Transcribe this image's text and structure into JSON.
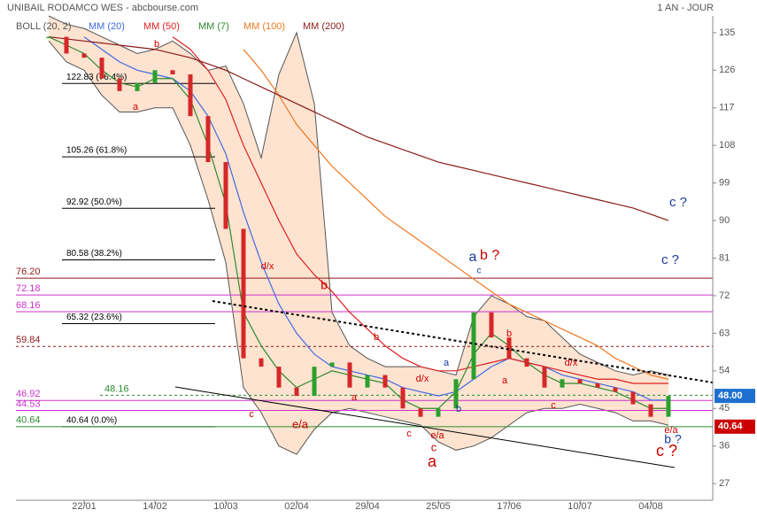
{
  "header": {
    "title": "UNIBAIL RODAMCO WES - abcbourse.com",
    "period": "1 AN - JOUR"
  },
  "chart_data": {
    "type": "line",
    "categories": [
      null,
      null,
      "22/01",
      null,
      null,
      null,
      "14/02",
      null,
      null,
      null,
      "10/03",
      null,
      null,
      null,
      "02/04",
      null,
      null,
      null,
      "29/04",
      null,
      null,
      null,
      "25/05",
      null,
      null,
      null,
      "17/06",
      null,
      null,
      null,
      "10/07",
      null,
      null,
      null,
      "04/08",
      null
    ],
    "ylim": [
      23,
      139
    ],
    "yticks": [
      135,
      126,
      117,
      108,
      99,
      90,
      81,
      72,
      63,
      54,
      45,
      36,
      27
    ],
    "price": {
      "up_color": "#2ca02c",
      "down_color": "#d62728",
      "values": [
        134,
        130,
        129,
        124,
        121,
        123,
        126,
        125,
        115,
        104,
        88,
        57,
        55,
        50,
        48,
        55,
        56,
        50,
        53,
        50,
        45,
        43,
        45,
        52,
        68,
        62,
        57,
        55,
        50,
        52,
        51,
        50,
        49,
        46,
        43,
        48
      ]
    },
    "band": {
      "name": "BOLL (20, 2)",
      "color": "#555555",
      "fill": "#fde3d0",
      "upper": [
        139,
        137,
        136,
        134,
        132,
        130,
        131,
        133,
        130,
        126,
        127,
        118,
        105,
        125,
        135,
        118,
        68,
        60,
        57,
        55,
        55,
        55,
        54,
        53,
        67,
        72,
        70,
        67,
        66,
        62,
        58,
        56,
        54,
        53,
        54,
        53
      ],
      "lower": [
        133,
        128,
        126,
        120,
        116,
        116,
        117,
        117,
        108,
        95,
        80,
        50,
        44,
        36,
        34,
        40,
        44,
        45,
        44,
        43,
        42,
        41,
        37,
        35,
        36,
        38,
        41,
        44,
        45,
        45,
        46,
        45,
        44,
        42,
        42,
        41
      ]
    },
    "series": [
      {
        "name": "MM (20)",
        "color": "#4169e1",
        "values": [
          null,
          null,
          134,
          131,
          128,
          126,
          125,
          124,
          121,
          115,
          106,
          92,
          80,
          70,
          63,
          58,
          55,
          54,
          53,
          52,
          50,
          49,
          48,
          49,
          52,
          55,
          57,
          56,
          55,
          53,
          52,
          51,
          50,
          49,
          47,
          47
        ]
      },
      {
        "name": "MM (50)",
        "color": "#e02020",
        "values": [
          null,
          null,
          null,
          null,
          null,
          null,
          null,
          134,
          131,
          126,
          119,
          108,
          99,
          90,
          82,
          77,
          73,
          68,
          64,
          60,
          57,
          55,
          54,
          54,
          55,
          56,
          57,
          56,
          55,
          54,
          53,
          52,
          52,
          51,
          51,
          51
        ]
      },
      {
        "name": "MM (7)",
        "color": "#2e8b2e",
        "values": [
          134,
          132,
          130,
          126,
          123,
          122,
          124,
          124,
          119,
          108,
          94,
          68,
          60,
          54,
          50,
          52,
          54,
          53,
          52,
          51,
          47,
          45,
          45,
          49,
          58,
          63,
          60,
          56,
          53,
          51,
          51,
          50,
          49,
          47,
          45,
          45
        ]
      },
      {
        "name": "MM (100)",
        "color": "#f07820",
        "values": [
          null,
          null,
          null,
          null,
          null,
          null,
          null,
          null,
          null,
          null,
          null,
          131,
          126,
          120,
          113,
          108,
          103,
          99,
          95,
          91,
          88,
          85,
          82,
          79,
          76,
          73,
          70,
          68,
          66,
          64,
          62,
          60,
          57,
          55,
          53,
          52
        ]
      },
      {
        "name": "MM (200)",
        "color": "#8b1a1a",
        "values": [
          134,
          133.5,
          133,
          132.5,
          132,
          131.5,
          131,
          130,
          129,
          127.5,
          126,
          124,
          122,
          120,
          118,
          116,
          114,
          112,
          110,
          108.5,
          107,
          105.5,
          104,
          103,
          102,
          101,
          100,
          99,
          98,
          97,
          96,
          95,
          94,
          93,
          91.5,
          90
        ]
      }
    ],
    "fib_levels": [
      {
        "value": 122.83,
        "label": "122.83  (76.4%)"
      },
      {
        "value": 105.26,
        "label": "105.26  (61.8%)"
      },
      {
        "value": 92.92,
        "label": "92.92  (50.0%)"
      },
      {
        "value": 80.58,
        "label": "80.58  (38.2%)"
      },
      {
        "value": 65.32,
        "label": "65.32  (23.6%)"
      },
      {
        "value": 40.64,
        "label": "40.64  (0.0%)"
      }
    ],
    "hlines": [
      {
        "value": 76.2,
        "label": "76.20",
        "color": "#8b1a1a",
        "dashed": false
      },
      {
        "value": 72.18,
        "label": "72.18",
        "color": "#cc33cc",
        "dashed": false
      },
      {
        "value": 68.16,
        "label": "68.16",
        "color": "#cc33cc",
        "dashed": false
      },
      {
        "value": 59.84,
        "label": "59.84",
        "color": "#8b1a1a",
        "dashed": true
      },
      {
        "value": 48.16,
        "label": "48.16",
        "color": "#2e8b2e",
        "dashed": true
      },
      {
        "value": 46.92,
        "label": "46.92",
        "color": "#cc33cc",
        "dashed": false
      },
      {
        "value": 44.53,
        "label": "44.53",
        "color": "#cc33cc",
        "dashed": false
      },
      {
        "value": 40.64,
        "label": "40.64",
        "color": "#2e8b2e",
        "dashed": false
      }
    ],
    "price_tags": [
      {
        "value": 48,
        "label": "48.00",
        "color": "#1e6fd0"
      },
      {
        "value": 40.64,
        "label": "40.64",
        "color": "#cc0000"
      }
    ],
    "annotations": [
      "b",
      "a",
      "d/x",
      "b",
      "c",
      "e/a",
      "b",
      "a",
      "d/x",
      "c",
      "e/a",
      "c",
      "a",
      "a",
      "b",
      "a",
      "b ?",
      "c",
      "b",
      "a",
      "d/x",
      "c",
      "e/a",
      "b ?",
      "c ?",
      "c ?",
      "c ?"
    ]
  }
}
